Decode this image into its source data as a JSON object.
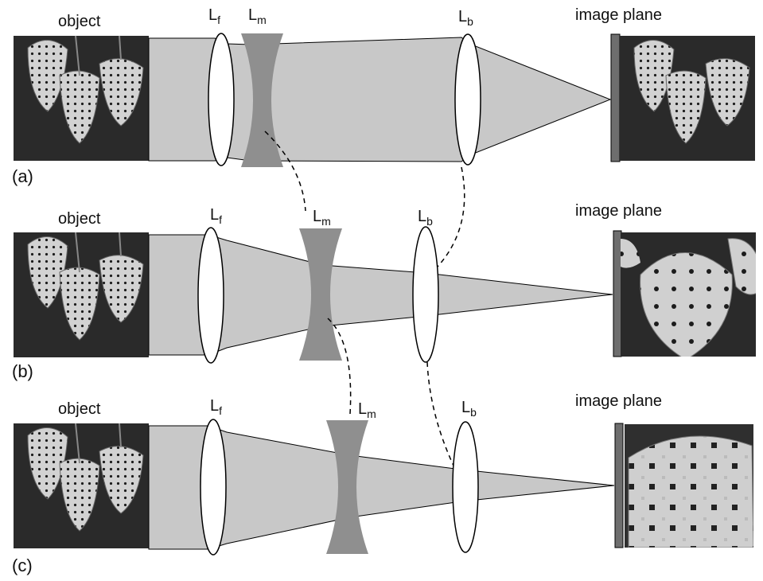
{
  "rows": [
    {
      "panel_label": "(a)",
      "object_label": "object",
      "image_plane_label": "image plane",
      "lens_front": {
        "main": "L",
        "sub": "f"
      },
      "lens_middle": {
        "main": "L",
        "sub": "m"
      },
      "lens_back": {
        "main": "L",
        "sub": "b"
      },
      "image_zoom": "none"
    },
    {
      "panel_label": "(b)",
      "object_label": "object",
      "image_plane_label": "image plane",
      "lens_front": {
        "main": "L",
        "sub": "f"
      },
      "lens_middle": {
        "main": "L",
        "sub": "m"
      },
      "lens_back": {
        "main": "L",
        "sub": "b"
      },
      "image_zoom": "medium"
    },
    {
      "panel_label": "(c)",
      "object_label": "object",
      "image_plane_label": "image plane",
      "lens_front": {
        "main": "L",
        "sub": "f"
      },
      "lens_middle": {
        "main": "L",
        "sub": "m"
      },
      "lens_back": {
        "main": "L",
        "sub": "b"
      },
      "image_zoom": "high"
    }
  ],
  "colors": {
    "beam": "#c8c8c8",
    "concave_lens": "#8f8f8f",
    "convex_lens_fill": "#ffffff",
    "outline": "#000000",
    "sensor": "#6e6e6e",
    "photo_bg": "#2a2a2a",
    "berry": "#d2d2d2"
  }
}
